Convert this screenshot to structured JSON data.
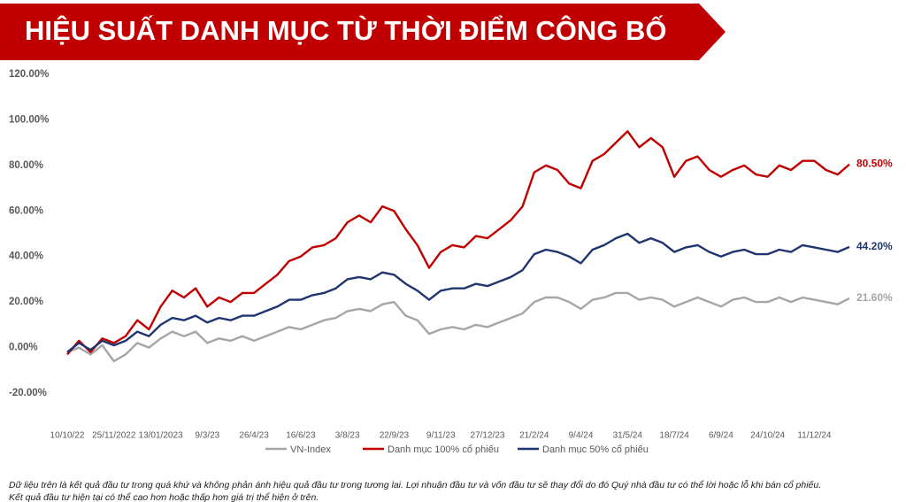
{
  "chart_data": {
    "type": "line",
    "title": "HIỆU SUẤT DANH MỤC TỪ THỜI ĐIỂM CÔNG BỐ",
    "footnote": [
      "Dữ liệu trên là kết quả đầu tư trong quá khứ và không phản ánh hiệu quả đầu tư trong tương lai. Lợi nhuận đầu tư và vốn đầu tư sẽ thay đổi do đó Quý nhà đầu tư có thể lời hoặc lỗ khi bán cổ phiếu.",
      "Kết quả đầu tư hiện tại có thể cao hơn hoặc thấp hơn giá trị thể hiện ở trên."
    ],
    "categories": [
      "10/10/22",
      null,
      null,
      null,
      "25/11/2022",
      null,
      null,
      null,
      "13/01/2023",
      null,
      null,
      null,
      "9/3/23",
      null,
      null,
      null,
      "26/4/23",
      null,
      null,
      null,
      "16/6/23",
      null,
      null,
      null,
      "3/8/23",
      null,
      null,
      null,
      "22/9/23",
      null,
      null,
      null,
      "9/11/23",
      null,
      null,
      null,
      "27/12/23",
      null,
      null,
      null,
      "21/2/24",
      null,
      null,
      null,
      "9/4/24",
      null,
      null,
      null,
      "31/5/24",
      null,
      null,
      null,
      "18/7/24",
      null,
      null,
      null,
      "6/9/24",
      null,
      null,
      null,
      "24/10/24",
      null,
      null,
      null,
      "11/12/24",
      null,
      null,
      null
    ],
    "series": [
      {
        "name": "VN-Index",
        "color": "#a6a6a6",
        "values": [
          -2,
          0,
          -3,
          1,
          -6,
          -3,
          2,
          0,
          4,
          7,
          5,
          7,
          2,
          4,
          3,
          5,
          3,
          5,
          7,
          9,
          8,
          10,
          12,
          13,
          16,
          17,
          16,
          19,
          20,
          14,
          12,
          6,
          8,
          9,
          8,
          10,
          9,
          11,
          13,
          15,
          20,
          22,
          22,
          20,
          17,
          21,
          22,
          24,
          24,
          21,
          22,
          21,
          18,
          20,
          22,
          20,
          18,
          21,
          22,
          20,
          20,
          22,
          20,
          22,
          21,
          20,
          19,
          21.6
        ],
        "value_labels": [
          null,
          null,
          null,
          null,
          null,
          null,
          null,
          null,
          null,
          null,
          null,
          null,
          null,
          null,
          null,
          null,
          null,
          null,
          null,
          null,
          null,
          null,
          null,
          null,
          null,
          null,
          null,
          null,
          null,
          null,
          null,
          null,
          null,
          null,
          null,
          null,
          null,
          null,
          null,
          null,
          null,
          null,
          null,
          null,
          null,
          null,
          null,
          null,
          null,
          null,
          null,
          null,
          null,
          null,
          null,
          null,
          null,
          null,
          null,
          null,
          null,
          null,
          null,
          null,
          null,
          null,
          null,
          "21.60%"
        ]
      },
      {
        "name": "Danh mục 100% cổ phiếu",
        "color": "#c00000",
        "values": [
          -3,
          3,
          -2,
          4,
          2,
          5,
          12,
          8,
          18,
          25,
          22,
          26,
          18,
          22,
          20,
          24,
          24,
          28,
          32,
          38,
          40,
          44,
          45,
          48,
          55,
          58,
          55,
          62,
          60,
          52,
          45,
          35,
          42,
          45,
          44,
          49,
          48,
          52,
          56,
          62,
          77,
          80,
          78,
          72,
          70,
          82,
          85,
          90,
          95,
          88,
          92,
          88,
          75,
          82,
          84,
          78,
          75,
          78,
          80,
          76,
          75,
          80,
          78,
          82,
          82,
          78,
          76,
          80.5
        ],
        "value_labels": [
          null,
          null,
          null,
          null,
          null,
          null,
          null,
          null,
          null,
          null,
          null,
          null,
          null,
          null,
          null,
          null,
          null,
          null,
          null,
          null,
          null,
          null,
          null,
          null,
          null,
          null,
          null,
          null,
          null,
          null,
          null,
          null,
          null,
          null,
          null,
          null,
          null,
          null,
          null,
          null,
          null,
          null,
          null,
          null,
          null,
          null,
          null,
          null,
          null,
          null,
          null,
          null,
          null,
          null,
          null,
          null,
          null,
          null,
          null,
          null,
          null,
          null,
          null,
          null,
          null,
          null,
          null,
          "80.50%"
        ]
      },
      {
        "name": "Danh mục 50% cổ phiếu",
        "color": "#1f3570",
        "values": [
          -2,
          2,
          -1,
          3,
          1,
          3,
          7,
          5,
          10,
          13,
          12,
          14,
          11,
          13,
          12,
          14,
          14,
          16,
          18,
          21,
          21,
          23,
          24,
          26,
          30,
          31,
          30,
          33,
          32,
          28,
          25,
          21,
          25,
          26,
          26,
          28,
          27,
          29,
          31,
          34,
          41,
          43,
          42,
          40,
          37,
          43,
          45,
          48,
          50,
          46,
          48,
          46,
          42,
          44,
          45,
          42,
          40,
          42,
          43,
          41,
          41,
          43,
          42,
          45,
          44,
          43,
          42,
          44.2
        ],
        "value_labels": [
          null,
          null,
          null,
          null,
          null,
          null,
          null,
          null,
          null,
          null,
          null,
          null,
          null,
          null,
          null,
          null,
          null,
          null,
          null,
          null,
          null,
          null,
          null,
          null,
          null,
          null,
          null,
          null,
          null,
          null,
          null,
          null,
          null,
          null,
          null,
          null,
          null,
          null,
          null,
          null,
          null,
          null,
          null,
          null,
          null,
          null,
          null,
          null,
          null,
          null,
          null,
          null,
          null,
          null,
          null,
          null,
          null,
          null,
          null,
          null,
          null,
          null,
          null,
          null,
          null,
          null,
          null,
          "44.20%"
        ]
      }
    ],
    "ylim": [
      -20,
      120
    ],
    "yticks": [
      {
        "value": -20,
        "label": "-20.00%"
      },
      {
        "value": 0,
        "label": "0.00%"
      },
      {
        "value": 20,
        "label": "20.00%"
      },
      {
        "value": 40,
        "label": "40.00%"
      },
      {
        "value": 60,
        "label": "60.00%"
      },
      {
        "value": 80,
        "label": "80.00%"
      },
      {
        "value": 100,
        "label": "100.00%"
      },
      {
        "value": 120,
        "label": "120.00%"
      }
    ],
    "grid": false
  }
}
